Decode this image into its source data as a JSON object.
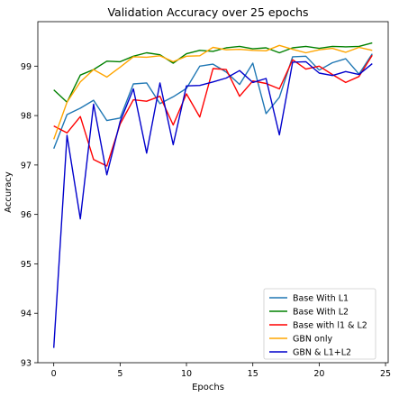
{
  "chart_data": {
    "type": "line",
    "title": "Validation Accuracy over 25 epochs",
    "xlabel": "Epochs",
    "ylabel": "Accuracy",
    "xlim": [
      -1.2,
      25.2
    ],
    "ylim": [
      93.0,
      99.9
    ],
    "xticks": [
      0,
      5,
      10,
      15,
      20,
      25
    ],
    "yticks": [
      93,
      94,
      95,
      96,
      97,
      98,
      99
    ],
    "legend_position": "bottom-right",
    "x": [
      0,
      1,
      2,
      3,
      4,
      5,
      6,
      7,
      8,
      9,
      10,
      11,
      12,
      13,
      14,
      15,
      16,
      17,
      18,
      19,
      20,
      21,
      22,
      23,
      24
    ],
    "series": [
      {
        "name": "Base With L1",
        "color": "#1f77b4",
        "values": [
          97.33,
          98.02,
          98.15,
          98.31,
          97.9,
          97.95,
          98.64,
          98.66,
          98.24,
          98.38,
          98.55,
          99.0,
          99.04,
          98.88,
          98.63,
          99.06,
          98.04,
          98.37,
          99.19,
          99.2,
          98.92,
          99.07,
          99.15,
          98.84,
          99.25
        ]
      },
      {
        "name": "Base With L2",
        "color": "#008000",
        "values": [
          98.52,
          98.27,
          98.82,
          98.93,
          99.1,
          99.09,
          99.2,
          99.27,
          99.23,
          99.06,
          99.25,
          99.32,
          99.3,
          99.37,
          99.4,
          99.35,
          99.37,
          99.27,
          99.37,
          99.4,
          99.36,
          99.4,
          99.39,
          99.4,
          99.47
        ]
      },
      {
        "name": "Base with l1 & L2",
        "color": "#ff0000",
        "values": [
          97.79,
          97.65,
          97.98,
          97.11,
          96.98,
          97.83,
          98.32,
          98.29,
          98.39,
          97.81,
          98.44,
          97.97,
          98.95,
          98.93,
          98.39,
          98.7,
          98.65,
          98.54,
          99.13,
          98.94,
          99.0,
          98.83,
          98.67,
          98.79,
          99.22
        ]
      },
      {
        "name": "GBN only",
        "color": "#ffa500",
        "values": [
          97.52,
          98.27,
          98.68,
          98.93,
          98.78,
          98.98,
          99.19,
          99.18,
          99.21,
          99.09,
          99.2,
          99.21,
          99.38,
          99.33,
          99.34,
          99.32,
          99.31,
          99.42,
          99.34,
          99.27,
          99.33,
          99.36,
          99.28,
          99.38,
          99.32
        ]
      },
      {
        "name": "GBN & L1+L2",
        "color": "#0000cc",
        "values": [
          93.3,
          97.6,
          95.91,
          98.23,
          96.8,
          97.88,
          98.54,
          97.24,
          98.66,
          97.41,
          98.6,
          98.61,
          98.68,
          98.76,
          98.91,
          98.67,
          98.75,
          97.61,
          99.08,
          99.09,
          98.86,
          98.81,
          98.89,
          98.83,
          99.05
        ]
      }
    ]
  }
}
